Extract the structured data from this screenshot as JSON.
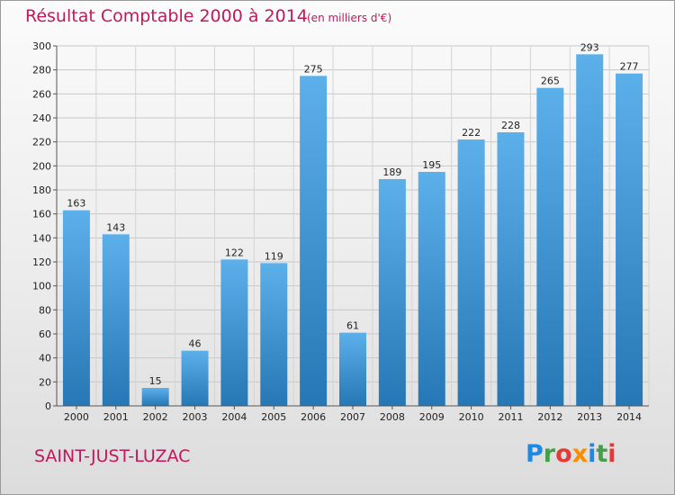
{
  "header": {
    "title": "Résultat Comptable 2000 à 2014",
    "subtitle": "(en milliers d'€)"
  },
  "footer": {
    "commune": "SAINT-JUST-LUZAC",
    "brand": "Proxiti",
    "brand_letters": [
      {
        "ch": "P",
        "color": "#1e88e5"
      },
      {
        "ch": "r",
        "color": "#43a047"
      },
      {
        "ch": "o",
        "color": "#e53935"
      },
      {
        "ch": "x",
        "color": "#fb8c00"
      },
      {
        "ch": "i",
        "color": "#1e88e5"
      },
      {
        "ch": "t",
        "color": "#43a047"
      },
      {
        "ch": "i",
        "color": "#e53935"
      }
    ]
  },
  "colors": {
    "accent": "#c2185b",
    "bar_top": "#5aaee8",
    "bar_bottom": "#2677b5"
  },
  "chart_data": {
    "type": "bar",
    "title": "Résultat Comptable 2000 à 2014",
    "subtitle": "(en milliers d'€)",
    "categories": [
      "2000",
      "2001",
      "2002",
      "2003",
      "2004",
      "2005",
      "2006",
      "2007",
      "2008",
      "2009",
      "2010",
      "2011",
      "2012",
      "2013",
      "2014"
    ],
    "values": [
      163,
      143,
      15,
      46,
      122,
      119,
      275,
      61,
      189,
      195,
      222,
      228,
      265,
      293,
      277
    ],
    "ylim": [
      0,
      300
    ],
    "yticks": [
      0,
      20,
      40,
      60,
      80,
      100,
      120,
      140,
      160,
      180,
      200,
      220,
      240,
      260,
      280,
      300
    ],
    "grid": true,
    "data_labels": true
  }
}
